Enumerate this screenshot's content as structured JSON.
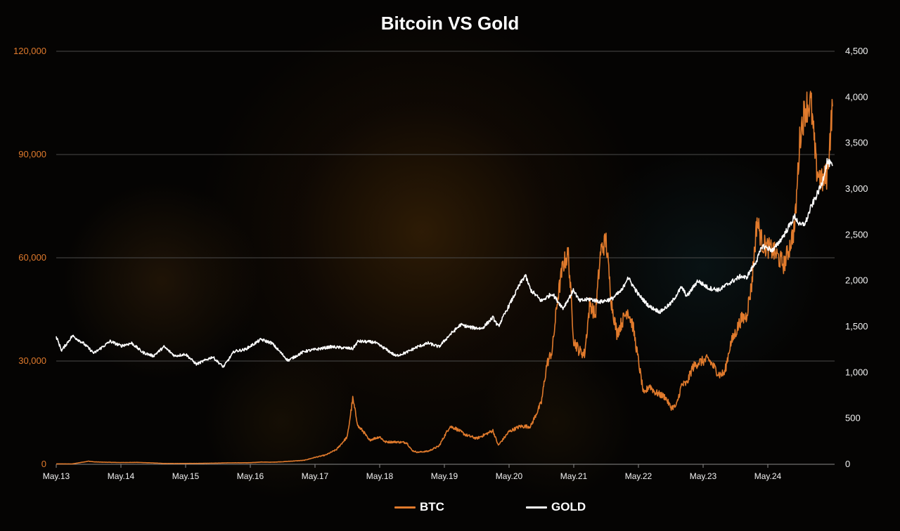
{
  "chart_data": {
    "type": "line",
    "title": "Bitcoin VS Gold",
    "x_labels": [
      "May.13",
      "May.14",
      "May.15",
      "May.16",
      "May.17",
      "May.18",
      "May.19",
      "May.20",
      "May.21",
      "May.22",
      "May.23",
      "May.24"
    ],
    "y_left": {
      "ylim": [
        0,
        120000
      ],
      "ticks": [
        0,
        30000,
        60000,
        90000,
        120000
      ],
      "tick_labels": [
        "0",
        "30,000",
        "60,000",
        "90,000",
        "120,000"
      ]
    },
    "y_right": {
      "ylim": [
        0,
        4500
      ],
      "ticks": [
        0,
        500,
        1000,
        1500,
        2000,
        2500,
        3000,
        3500,
        4000,
        4500
      ],
      "tick_labels": [
        "0",
        "500",
        "1,000",
        "1,500",
        "2,000",
        "2,500",
        "3,000",
        "3,500",
        "4,000",
        "4,500"
      ]
    },
    "grid": true,
    "legend_position": "bottom",
    "series": [
      {
        "name": "BTC",
        "axis": "left",
        "color": "#e07a2c",
        "points": [
          [
            "2013-05",
            120
          ],
          [
            "2013-08",
            110
          ],
          [
            "2013-11",
            900
          ],
          [
            "2013-12",
            700
          ],
          [
            "2014-02",
            600
          ],
          [
            "2014-05",
            500
          ],
          [
            "2014-08",
            550
          ],
          [
            "2014-11",
            380
          ],
          [
            "2015-01",
            230
          ],
          [
            "2015-05",
            240
          ],
          [
            "2015-08",
            260
          ],
          [
            "2015-11",
            350
          ],
          [
            "2016-01",
            420
          ],
          [
            "2016-05",
            450
          ],
          [
            "2016-07",
            650
          ],
          [
            "2016-09",
            600
          ],
          [
            "2016-11",
            740
          ],
          [
            "2017-01",
            950
          ],
          [
            "2017-03",
            1150
          ],
          [
            "2017-05",
            2000
          ],
          [
            "2017-07",
            2700
          ],
          [
            "2017-09",
            4300
          ],
          [
            "2017-11",
            8000
          ],
          [
            "2017-12",
            19000
          ],
          [
            "2018-01",
            11000
          ],
          [
            "2018-02",
            9500
          ],
          [
            "2018-03",
            7000
          ],
          [
            "2018-05",
            8000
          ],
          [
            "2018-06",
            6500
          ],
          [
            "2018-08",
            6500
          ],
          [
            "2018-10",
            6300
          ],
          [
            "2018-11",
            4000
          ],
          [
            "2018-12",
            3500
          ],
          [
            "2019-02",
            3800
          ],
          [
            "2019-04",
            5300
          ],
          [
            "2019-06",
            11000
          ],
          [
            "2019-07",
            10500
          ],
          [
            "2019-09",
            8500
          ],
          [
            "2019-11",
            7500
          ],
          [
            "2020-01",
            9000
          ],
          [
            "2020-02",
            9800
          ],
          [
            "2020-03",
            5500
          ],
          [
            "2020-05",
            9500
          ],
          [
            "2020-07",
            11000
          ],
          [
            "2020-09",
            11000
          ],
          [
            "2020-11",
            18000
          ],
          [
            "2020-12",
            29000
          ],
          [
            "2021-01",
            33000
          ],
          [
            "2021-02",
            48000
          ],
          [
            "2021-03",
            58000
          ],
          [
            "2021-04",
            61000
          ],
          [
            "2021-05",
            36000
          ],
          [
            "2021-06",
            33000
          ],
          [
            "2021-07",
            32000
          ],
          [
            "2021-08",
            47000
          ],
          [
            "2021-09",
            43000
          ],
          [
            "2021-10",
            62000
          ],
          [
            "2021-11",
            65000
          ],
          [
            "2021-12",
            47000
          ],
          [
            "2022-01",
            38000
          ],
          [
            "2022-03",
            45000
          ],
          [
            "2022-04",
            40000
          ],
          [
            "2022-05",
            30000
          ],
          [
            "2022-06",
            20000
          ],
          [
            "2022-07",
            23000
          ],
          [
            "2022-08",
            21000
          ],
          [
            "2022-10",
            19500
          ],
          [
            "2022-11",
            16500
          ],
          [
            "2022-12",
            16800
          ],
          [
            "2023-01",
            23000
          ],
          [
            "2023-02",
            23500
          ],
          [
            "2023-03",
            28000
          ],
          [
            "2023-04",
            29500
          ],
          [
            "2023-06",
            30500
          ],
          [
            "2023-08",
            26000
          ],
          [
            "2023-09",
            26500
          ],
          [
            "2023-10",
            34500
          ],
          [
            "2023-12",
            42000
          ],
          [
            "2024-01",
            43000
          ],
          [
            "2024-02",
            52000
          ],
          [
            "2024-03",
            71000
          ],
          [
            "2024-04",
            64000
          ],
          [
            "2024-06",
            62000
          ],
          [
            "2024-08",
            58000
          ],
          [
            "2024-09",
            63000
          ],
          [
            "2024-10",
            69000
          ],
          [
            "2024-11",
            96000
          ],
          [
            "2024-12",
            104000
          ],
          [
            "2025-01",
            105000
          ],
          [
            "2025-02",
            86000
          ],
          [
            "2025-03",
            82000
          ],
          [
            "2025-04",
            84000
          ],
          [
            "2025-05",
            104000
          ]
        ]
      },
      {
        "name": "GOLD",
        "axis": "right",
        "color": "#ffffff",
        "points": [
          [
            "2013-05",
            1390
          ],
          [
            "2013-06",
            1240
          ],
          [
            "2013-08",
            1400
          ],
          [
            "2013-10",
            1320
          ],
          [
            "2013-12",
            1210
          ],
          [
            "2014-03",
            1340
          ],
          [
            "2014-05",
            1290
          ],
          [
            "2014-07",
            1320
          ],
          [
            "2014-09",
            1220
          ],
          [
            "2014-11",
            1180
          ],
          [
            "2015-01",
            1280
          ],
          [
            "2015-03",
            1180
          ],
          [
            "2015-05",
            1200
          ],
          [
            "2015-07",
            1090
          ],
          [
            "2015-10",
            1170
          ],
          [
            "2015-12",
            1060
          ],
          [
            "2016-02",
            1230
          ],
          [
            "2016-04",
            1250
          ],
          [
            "2016-07",
            1360
          ],
          [
            "2016-09",
            1320
          ],
          [
            "2016-12",
            1130
          ],
          [
            "2017-03",
            1230
          ],
          [
            "2017-06",
            1260
          ],
          [
            "2017-08",
            1280
          ],
          [
            "2017-10",
            1270
          ],
          [
            "2017-12",
            1260
          ],
          [
            "2018-01",
            1340
          ],
          [
            "2018-04",
            1330
          ],
          [
            "2018-06",
            1260
          ],
          [
            "2018-08",
            1180
          ],
          [
            "2018-10",
            1220
          ],
          [
            "2018-12",
            1280
          ],
          [
            "2019-02",
            1320
          ],
          [
            "2019-04",
            1280
          ],
          [
            "2019-06",
            1410
          ],
          [
            "2019-08",
            1520
          ],
          [
            "2019-10",
            1490
          ],
          [
            "2019-12",
            1480
          ],
          [
            "2020-02",
            1600
          ],
          [
            "2020-03",
            1500
          ],
          [
            "2020-05",
            1730
          ],
          [
            "2020-07",
            1960
          ],
          [
            "2020-08",
            2060
          ],
          [
            "2020-09",
            1900
          ],
          [
            "2020-11",
            1780
          ],
          [
            "2021-01",
            1860
          ],
          [
            "2021-03",
            1700
          ],
          [
            "2021-05",
            1900
          ],
          [
            "2021-06",
            1780
          ],
          [
            "2021-08",
            1800
          ],
          [
            "2021-10",
            1770
          ],
          [
            "2021-12",
            1800
          ],
          [
            "2022-02",
            1900
          ],
          [
            "2022-03",
            2040
          ],
          [
            "2022-05",
            1850
          ],
          [
            "2022-07",
            1720
          ],
          [
            "2022-09",
            1660
          ],
          [
            "2022-11",
            1750
          ],
          [
            "2023-01",
            1930
          ],
          [
            "2023-02",
            1830
          ],
          [
            "2023-04",
            2000
          ],
          [
            "2023-06",
            1920
          ],
          [
            "2023-08",
            1900
          ],
          [
            "2023-10",
            1980
          ],
          [
            "2023-12",
            2050
          ],
          [
            "2024-01",
            2030
          ],
          [
            "2024-03",
            2230
          ],
          [
            "2024-04",
            2380
          ],
          [
            "2024-06",
            2330
          ],
          [
            "2024-08",
            2500
          ],
          [
            "2024-10",
            2700
          ],
          [
            "2024-11",
            2600
          ],
          [
            "2024-12",
            2630
          ],
          [
            "2025-01",
            2800
          ],
          [
            "2025-03",
            3050
          ],
          [
            "2025-04",
            3300
          ],
          [
            "2025-05",
            3250
          ]
        ]
      }
    ]
  }
}
